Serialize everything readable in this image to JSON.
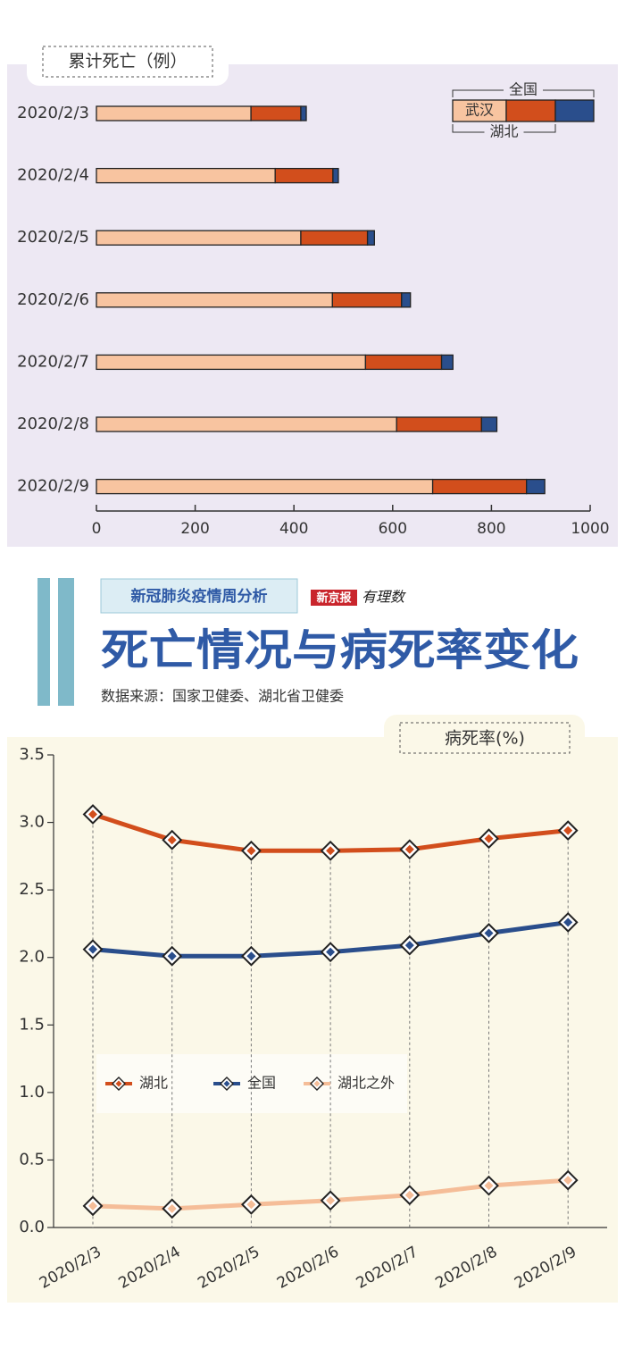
{
  "chart_data": [
    {
      "type": "bar",
      "orientation": "horizontal",
      "stacked": true,
      "title": "累计死亡（例）",
      "categories": [
        "2020/2/3",
        "2020/2/4",
        "2020/2/5",
        "2020/2/6",
        "2020/2/7",
        "2020/2/8",
        "2020/2/9"
      ],
      "series": [
        {
          "name": "武汉",
          "color": "#f8c4a0",
          "values": [
            313,
            362,
            414,
            478,
            545,
            608,
            681
          ]
        },
        {
          "name": "湖北",
          "color": "#d24e1c",
          "values": [
            101,
            117,
            135,
            140,
            154,
            172,
            190
          ]
        },
        {
          "name": "全国",
          "color": "#2a4e8c",
          "values": [
            11,
            11,
            14,
            18,
            23,
            31,
            37
          ]
        }
      ],
      "xlim": [
        0,
        1000
      ],
      "xticks": [
        0,
        200,
        400,
        600,
        800,
        1000
      ],
      "legend": "top-right"
    },
    {
      "type": "line",
      "y_label": "病死率(%)",
      "categories": [
        "2020/2/3",
        "2020/2/4",
        "2020/2/5",
        "2020/2/6",
        "2020/2/7",
        "2020/2/8",
        "2020/2/9"
      ],
      "series": [
        {
          "name": "湖北",
          "color": "#d24e1c",
          "values": [
            3.06,
            2.87,
            2.79,
            2.79,
            2.8,
            2.88,
            2.94
          ]
        },
        {
          "name": "全国",
          "color": "#2a4e8c",
          "values": [
            2.06,
            2.01,
            2.01,
            2.04,
            2.09,
            2.18,
            2.26
          ]
        },
        {
          "name": "湖北之外",
          "color": "#f5bd98",
          "values": [
            0.16,
            0.14,
            0.17,
            0.2,
            0.24,
            0.31,
            0.35
          ]
        }
      ],
      "ylim": [
        0,
        3.5
      ],
      "yticks": [
        {
          "value": 0,
          "label": "0.0"
        },
        0.5,
        {
          "value": 1,
          "label": "1.0"
        },
        1.5,
        {
          "value": 2,
          "label": "2.0"
        },
        2.5,
        {
          "value": 3,
          "label": "3.0"
        },
        3.5
      ],
      "legend": "center-left"
    }
  ],
  "header": {
    "tag": "新冠肺炎疫情周分析",
    "logo": [
      "新京报",
      "有理数"
    ],
    "title": "死亡情况与病死率变化",
    "source": "数据来源：国家卫健委、湖北省卫健委"
  }
}
